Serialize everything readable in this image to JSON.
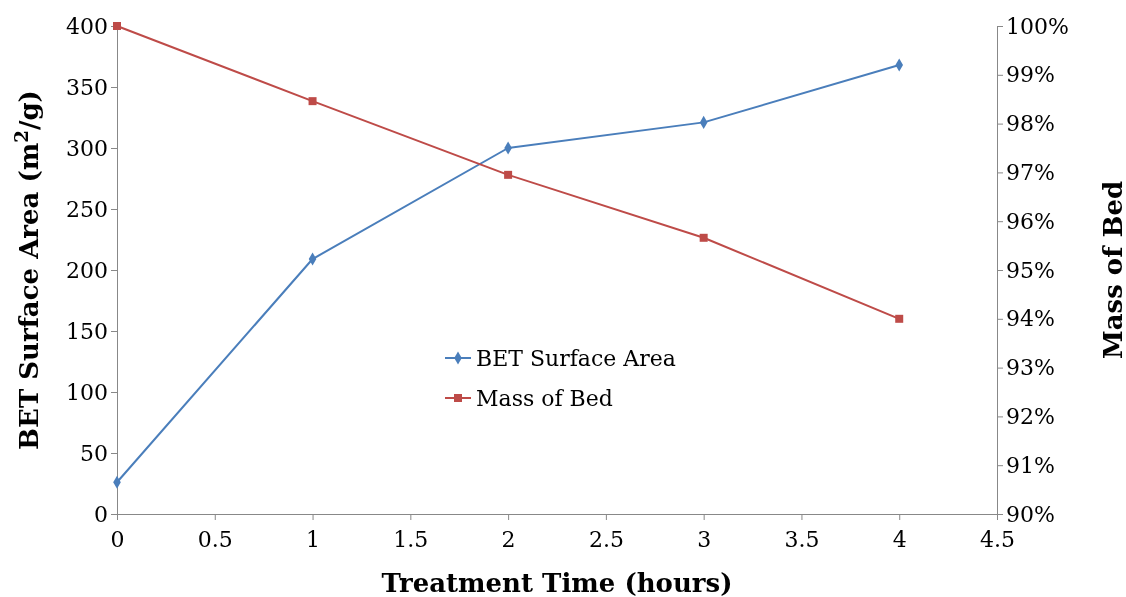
{
  "chart_data": {
    "type": "line",
    "xlabel": "Treatment Time (hours)",
    "ylabel": "BET Surface Area (m$^{2}$/g)",
    "y2label": "Mass of Bed",
    "x": [
      0,
      1,
      2,
      3,
      4
    ],
    "xlim": [
      0,
      4.5
    ],
    "xticks": [
      0,
      0.5,
      1,
      1.5,
      2,
      2.5,
      3,
      3.5,
      4,
      4.5
    ],
    "ylim": [
      0,
      400
    ],
    "yticks": [
      0,
      50,
      100,
      150,
      200,
      250,
      300,
      350,
      400
    ],
    "y2lim": [
      90,
      100
    ],
    "y2ticks": [
      {
        "value": 90,
        "label": "90%"
      },
      {
        "value": 91,
        "label": "91%"
      },
      {
        "value": 92,
        "label": "92%"
      },
      {
        "value": 93,
        "label": "93%"
      },
      {
        "value": 94,
        "label": "94%"
      },
      {
        "value": 95,
        "label": "95%"
      },
      {
        "value": 96,
        "label": "96%"
      },
      {
        "value": 97,
        "label": "97%"
      },
      {
        "value": 98,
        "label": "98%"
      },
      {
        "value": 99,
        "label": "99%"
      },
      {
        "value": 100,
        "label": "100%"
      }
    ],
    "legend": "center",
    "grid": false,
    "line_style": "solid",
    "series": [
      {
        "name": "BET Surface Area",
        "color": "#4a7ebb",
        "marker": "diamond",
        "values": [
          26,
          209,
          300,
          321,
          368
        ]
      },
      {
        "name": "Mass of Bed",
        "color": "#be4b48",
        "marker": "square",
        "axis": "y2",
        "values": [
          100,
          98.46,
          96.95,
          95.66,
          94.0
        ]
      }
    ]
  }
}
